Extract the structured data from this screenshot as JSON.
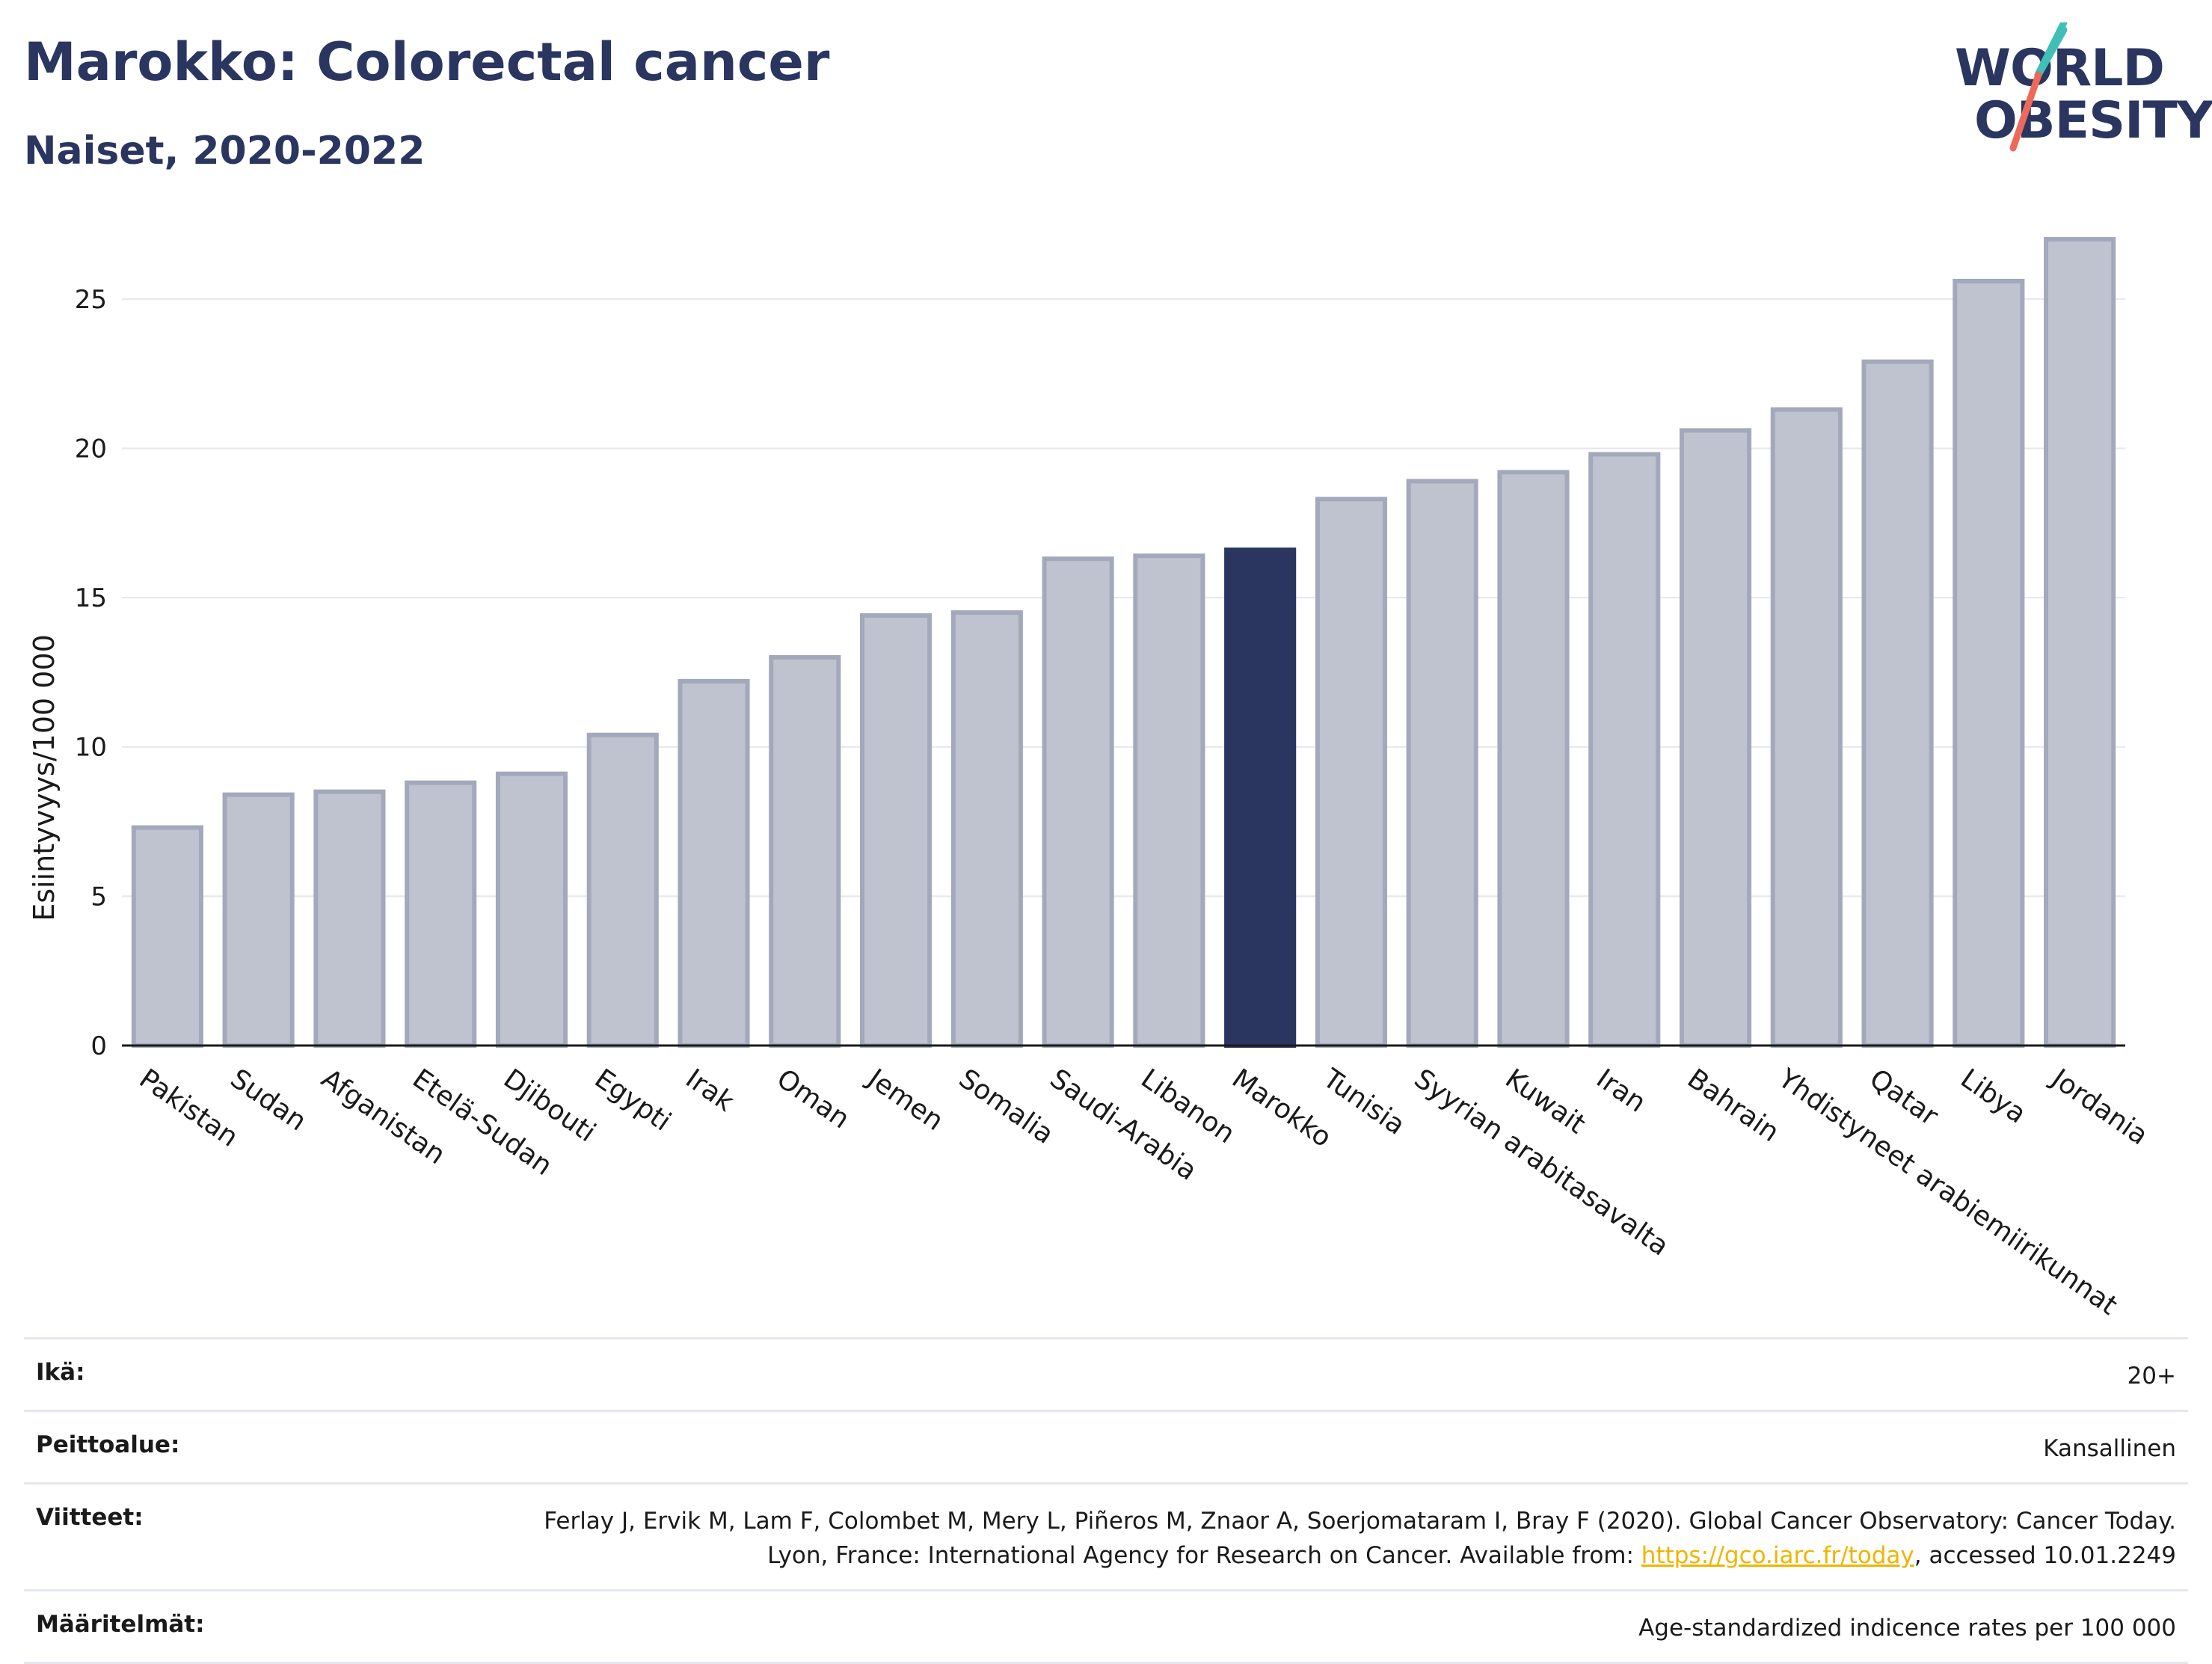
{
  "header": {
    "title": "Marokko: Colorectal cancer",
    "subtitle": "Naiset, 2020-2022"
  },
  "logo": {
    "line1": "WORLD",
    "line2": "OBESITY"
  },
  "chart_data": {
    "type": "bar",
    "ylabel": "Esiintyvyys/100 000",
    "ylim": [
      0,
      27.5
    ],
    "yticks": [
      0,
      5,
      10,
      15,
      20,
      25
    ],
    "grid": true,
    "categories": [
      "Pakistan",
      "Sudan",
      "Afganistan",
      "Etelä-Sudan",
      "Djibouti",
      "Egypti",
      "Irak",
      "Oman",
      "Jemen",
      "Somalia",
      "Saudi-Arabia",
      "Libanon",
      "Marokko",
      "Tunisia",
      "Syyrian arabitasavalta",
      "Kuwait",
      "Iran",
      "Bahrain",
      "Yhdistyneet arabiemiirikunnat",
      "Qatar",
      "Libya",
      "Jordania"
    ],
    "values": [
      7.3,
      8.4,
      8.5,
      8.8,
      9.1,
      10.4,
      12.2,
      13.0,
      14.4,
      14.5,
      16.3,
      16.4,
      16.6,
      18.3,
      18.9,
      19.2,
      19.8,
      20.6,
      21.3,
      22.9,
      25.6,
      27.0
    ],
    "highlight": "Marokko",
    "colors": {
      "bar": "#bfc3d0",
      "bar_border": "#a3a9bb",
      "highlight": "#2a3560"
    }
  },
  "info": {
    "age_label": "Ikä:",
    "age_value": "20+",
    "coverage_label": "Peittoalue:",
    "coverage_value": "Kansallinen",
    "references_label": "Viitteet:",
    "references_text": "Ferlay J, Ervik M, Lam F, Colombet M, Mery L, Piñeros M, Znaor A, Soerjomataram I, Bray F (2020). Global Cancer Observatory: Cancer Today. Lyon, France: International Agency for Research on Cancer. Available from: ",
    "references_link": "https://gco.iarc.fr/today",
    "references_suffix": ", accessed 10.01.2249",
    "definitions_label": "Määritelmät:",
    "definitions_value": "Age-standardized indicence rates per 100 000"
  }
}
